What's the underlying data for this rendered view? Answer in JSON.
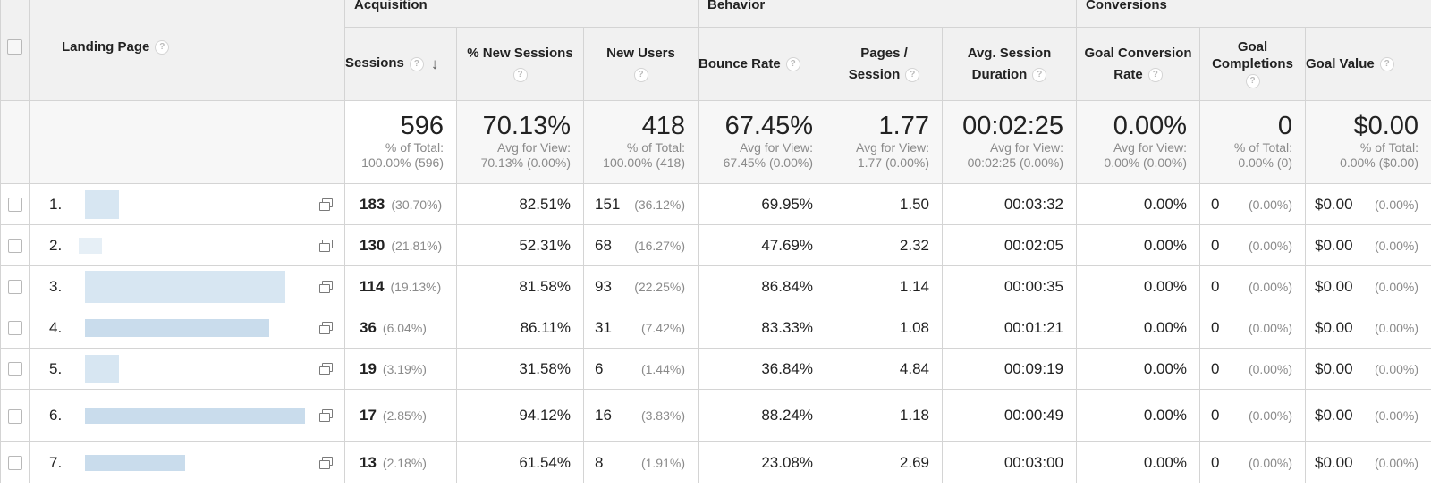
{
  "groups": {
    "acquisition": "Acquisition",
    "behavior": "Behavior",
    "conversions": "Conversions"
  },
  "columns": {
    "landing_page": "Landing Page",
    "sessions": "Sessions",
    "new_sessions_pct": "% New Sessions",
    "new_users": "New Users",
    "bounce_rate": "Bounce Rate",
    "pages_session_1": "Pages /",
    "pages_session_2": "Session",
    "avg_duration_1": "Avg. Session",
    "avg_duration_2": "Duration",
    "goal_conv_1": "Goal Conversion",
    "goal_conv_2": "Rate",
    "goal_completions_1": "Goal",
    "goal_completions_2": "Completions",
    "goal_value": "Goal Value"
  },
  "help_glyph": "?",
  "sort_glyph": "↓",
  "totals": [
    {
      "value": "596",
      "l1": "% of Total:",
      "l2": "100.00% (596)"
    },
    {
      "value": "70.13%",
      "l1": "Avg for View:",
      "l2": "70.13% (0.00%)"
    },
    {
      "value": "418",
      "l1": "% of Total:",
      "l2": "100.00% (418)"
    },
    {
      "value": "67.45%",
      "l1": "Avg for View:",
      "l2": "67.45% (0.00%)"
    },
    {
      "value": "1.77",
      "l1": "Avg for View:",
      "l2": "1.77 (0.00%)"
    },
    {
      "value": "00:02:25",
      "l1": "Avg for View:",
      "l2": "00:02:25 (0.00%)"
    },
    {
      "value": "0.00%",
      "l1": "Avg for View:",
      "l2": "0.00% (0.00%)"
    },
    {
      "value": "0",
      "l1": "% of Total:",
      "l2": "0.00% (0)"
    },
    {
      "value": "$0.00",
      "l1": "% of Total:",
      "l2": "0.00% ($0.00)"
    }
  ],
  "rows": [
    {
      "num": "1.",
      "sessions": "183",
      "sessions_pct": "(30.70%)",
      "new_sessions": "82.51%",
      "new_users": "151",
      "new_users_pct": "(36.12%)",
      "bounce": "69.95%",
      "pages": "1.50",
      "duration": "00:03:32",
      "conv": "0.00%",
      "completions": "0",
      "completions_pct": "(0.00%)",
      "value": "$0.00",
      "value_pct": "(0.00%)"
    },
    {
      "num": "2.",
      "sessions": "130",
      "sessions_pct": "(21.81%)",
      "new_sessions": "52.31%",
      "new_users": "68",
      "new_users_pct": "(16.27%)",
      "bounce": "47.69%",
      "pages": "2.32",
      "duration": "00:02:05",
      "conv": "0.00%",
      "completions": "0",
      "completions_pct": "(0.00%)",
      "value": "$0.00",
      "value_pct": "(0.00%)"
    },
    {
      "num": "3.",
      "sessions": "114",
      "sessions_pct": "(19.13%)",
      "new_sessions": "81.58%",
      "new_users": "93",
      "new_users_pct": "(22.25%)",
      "bounce": "86.84%",
      "pages": "1.14",
      "duration": "00:00:35",
      "conv": "0.00%",
      "completions": "0",
      "completions_pct": "(0.00%)",
      "value": "$0.00",
      "value_pct": "(0.00%)"
    },
    {
      "num": "4.",
      "sessions": "36",
      "sessions_pct": "(6.04%)",
      "new_sessions": "86.11%",
      "new_users": "31",
      "new_users_pct": "(7.42%)",
      "bounce": "83.33%",
      "pages": "1.08",
      "duration": "00:01:21",
      "conv": "0.00%",
      "completions": "0",
      "completions_pct": "(0.00%)",
      "value": "$0.00",
      "value_pct": "(0.00%)"
    },
    {
      "num": "5.",
      "sessions": "19",
      "sessions_pct": "(3.19%)",
      "new_sessions": "31.58%",
      "new_users": "6",
      "new_users_pct": "(1.44%)",
      "bounce": "36.84%",
      "pages": "4.84",
      "duration": "00:09:19",
      "conv": "0.00%",
      "completions": "0",
      "completions_pct": "(0.00%)",
      "value": "$0.00",
      "value_pct": "(0.00%)"
    },
    {
      "num": "6.",
      "sessions": "17",
      "sessions_pct": "(2.85%)",
      "new_sessions": "94.12%",
      "new_users": "16",
      "new_users_pct": "(3.83%)",
      "bounce": "88.24%",
      "pages": "1.18",
      "duration": "00:00:49",
      "conv": "0.00%",
      "completions": "0",
      "completions_pct": "(0.00%)",
      "value": "$0.00",
      "value_pct": "(0.00%)"
    },
    {
      "num": "7.",
      "sessions": "13",
      "sessions_pct": "(2.18%)",
      "new_sessions": "61.54%",
      "new_users": "8",
      "new_users_pct": "(1.91%)",
      "bounce": "23.08%",
      "pages": "2.69",
      "duration": "00:03:00",
      "conv": "0.00%",
      "completions": "0",
      "completions_pct": "(0.00%)",
      "value": "$0.00",
      "value_pct": "(0.00%)"
    }
  ]
}
